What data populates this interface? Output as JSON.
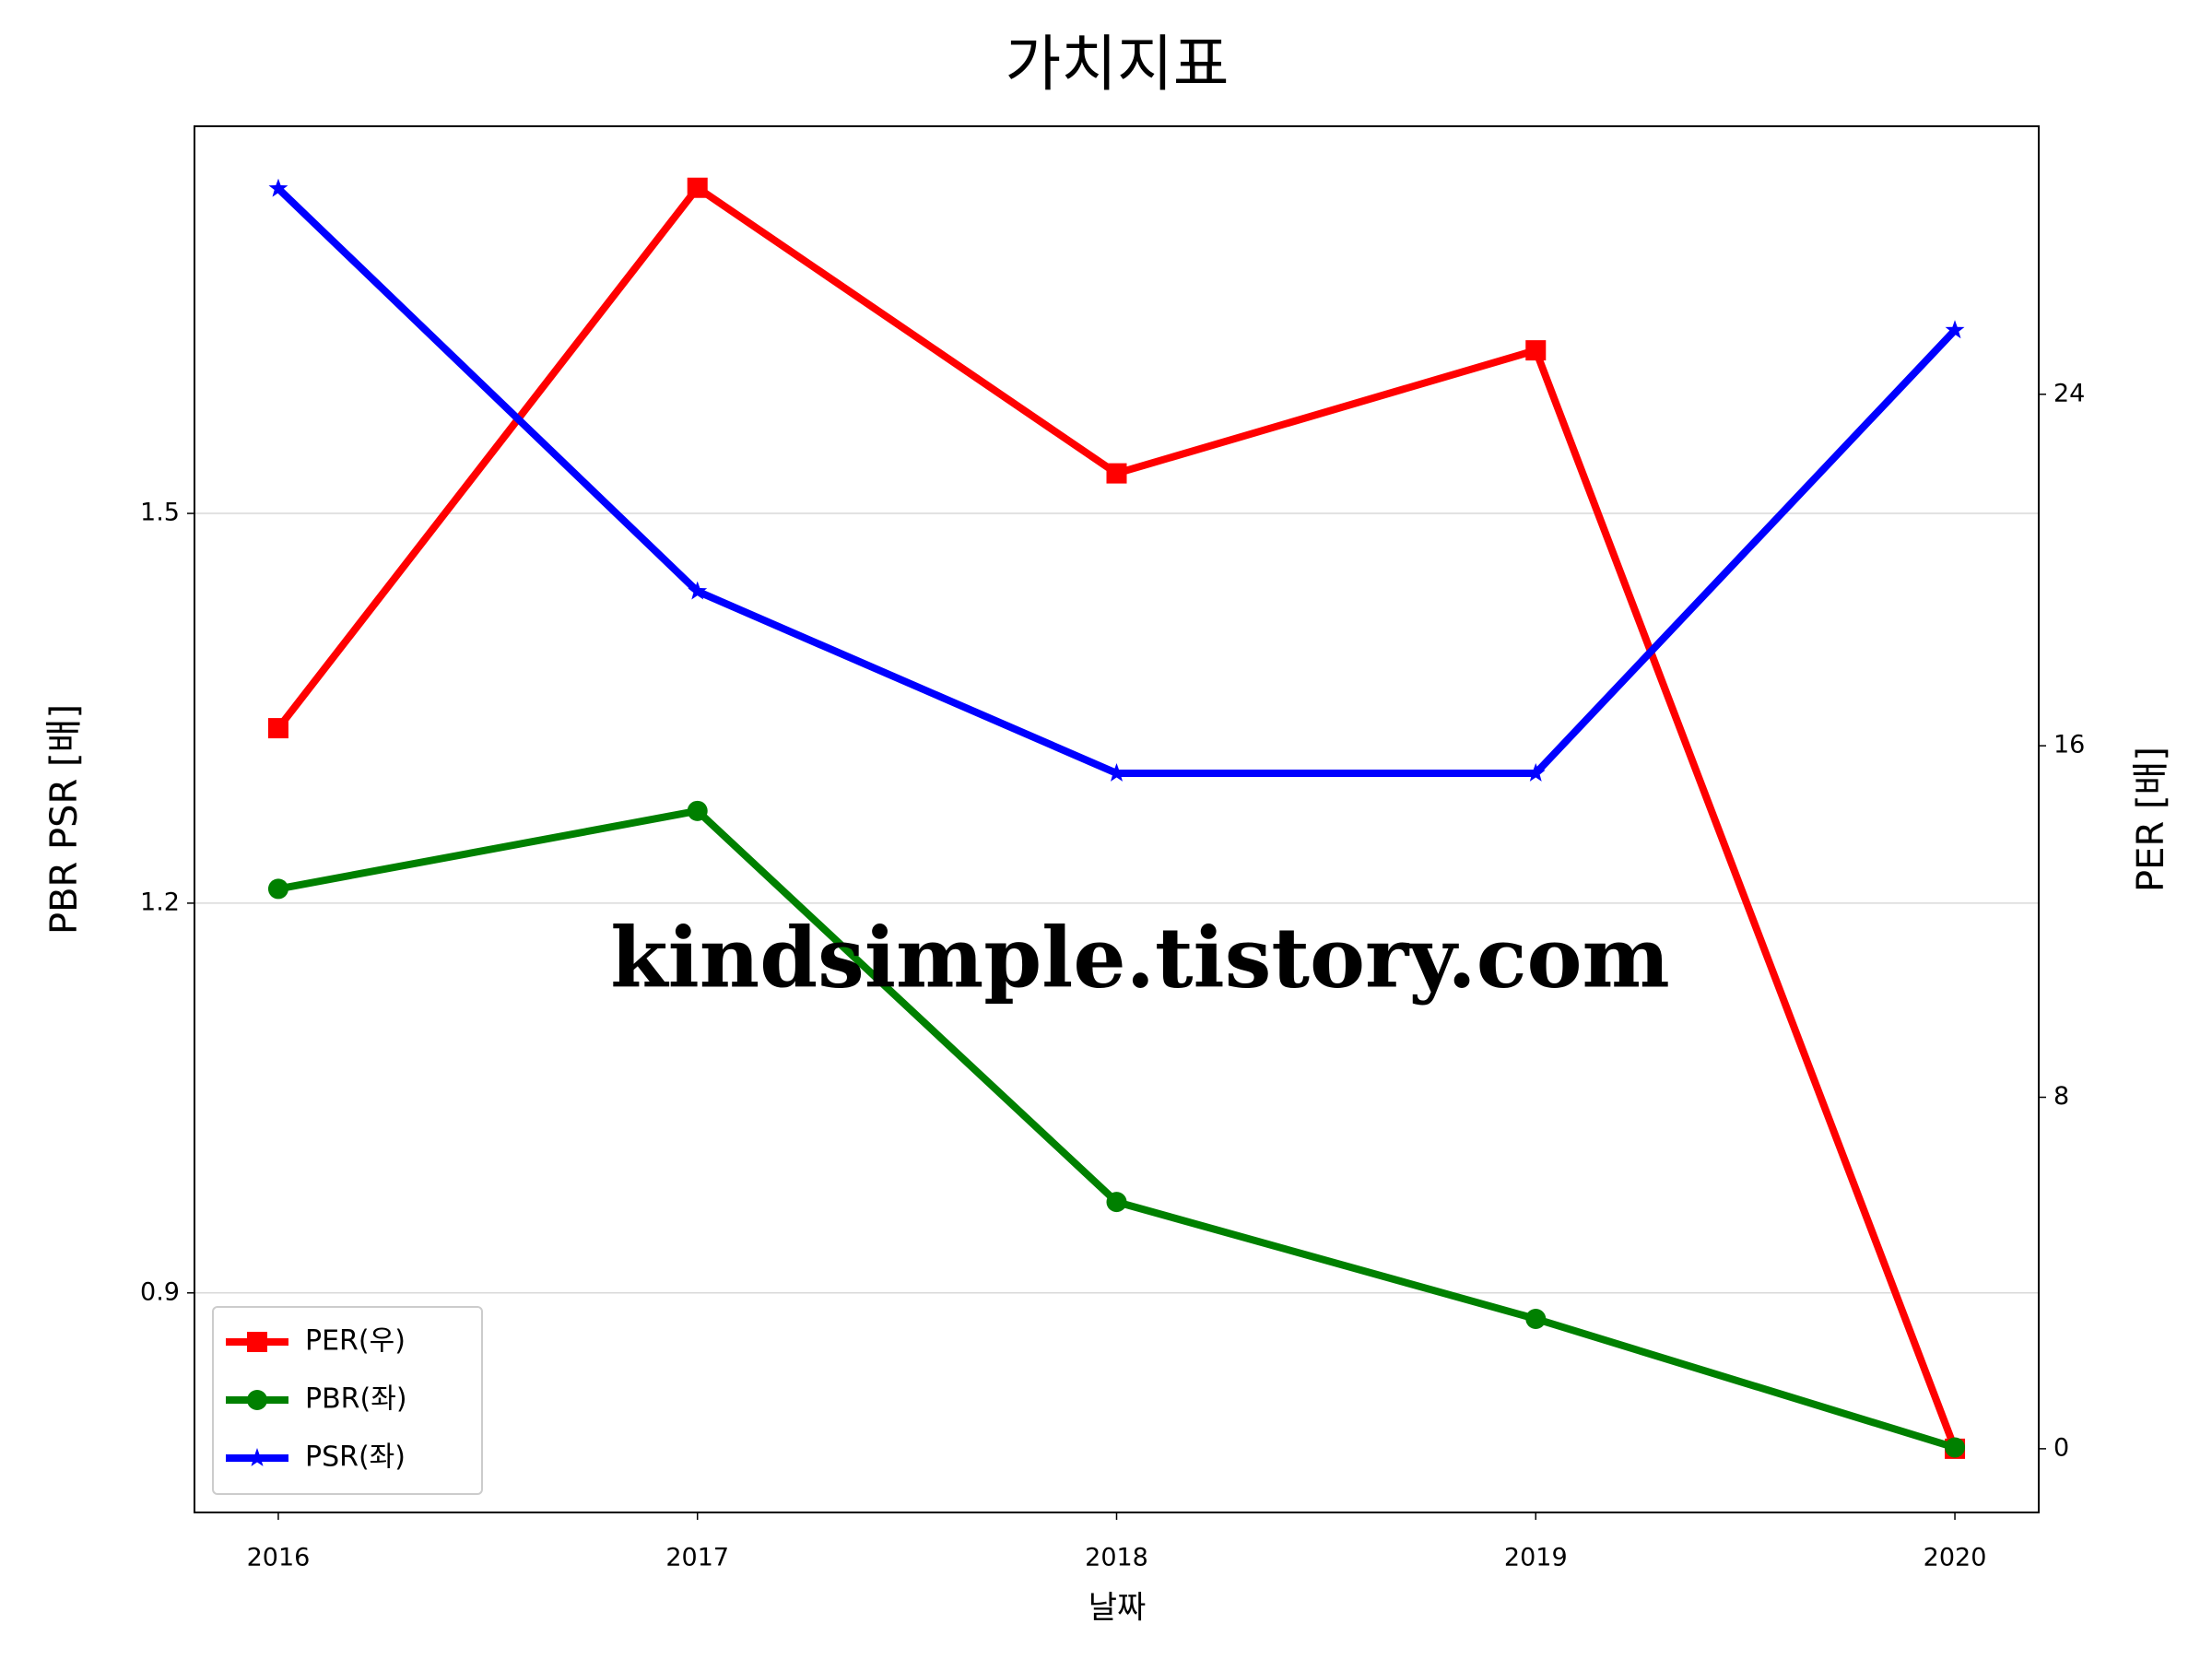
{
  "chart_data": {
    "type": "line",
    "title": "가치지표",
    "xlabel": "날짜",
    "ylabel": "PBR PSR [배]",
    "y2label": "PER [배]",
    "watermark": "kindsimple.tistory.com",
    "x": [
      2016,
      2017,
      2018,
      2019,
      2020
    ],
    "xlim": [
      2015.8,
      2020.2
    ],
    "xticks": [
      2016,
      2017,
      2018,
      2019,
      2020
    ],
    "ylim": [
      0.731,
      1.798
    ],
    "yticks": [
      0.9,
      1.2,
      1.5
    ],
    "y2lim": [
      -1.45,
      30.1
    ],
    "y2ticks": [
      0,
      8,
      16,
      24
    ],
    "grid": true,
    "legend": "lower left",
    "ylabel_color": "#008000",
    "y2label_color": "#ff0000",
    "series": [
      {
        "name": "PER(우)",
        "color": "#ff0000",
        "marker": "square",
        "axis": "y2",
        "values": [
          16.4,
          28.7,
          22.2,
          25.0,
          0
        ]
      },
      {
        "name": "PBR(좌)",
        "color": "#008000",
        "marker": "circle",
        "values": [
          1.211,
          1.271,
          0.97,
          0.88,
          0.781
        ]
      },
      {
        "name": "PSR(좌)",
        "color": "#0000ff",
        "marker": "star",
        "values": [
          1.75,
          1.44,
          1.3,
          1.3,
          1.641
        ]
      }
    ]
  }
}
